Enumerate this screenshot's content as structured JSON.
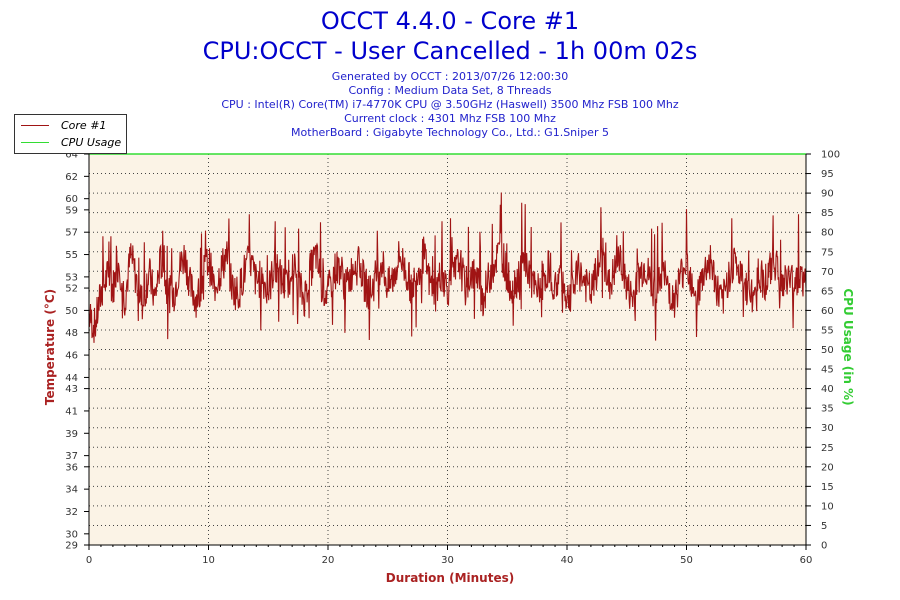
{
  "title": "OCCT 4.4.0 - Core #1",
  "subtitle": "CPU:OCCT - User Cancelled - 1h 00m 02s",
  "info": {
    "generated": "Generated by OCCT : 2013/07/26 12:00:30",
    "config": "Config : Medium Data Set, 8 Threads",
    "cpu": "CPU : Intel(R) Core(TM) i7-4770K CPU @ 3.50GHz (Haswell) 3500 Mhz FSB 100 Mhz",
    "clock": "Current clock : 4301 Mhz FSB 100 Mhz",
    "motherboard": "MotherBoard : Gigabyte Technology Co., Ltd.: G1.Sniper 5"
  },
  "colors": {
    "temperature": "#a01414",
    "cpu_usage": "#33dd33",
    "plot_bg": "#fbf3e6",
    "title": "#0000cc"
  },
  "chart_data": {
    "type": "line",
    "title": "OCCT 4.4.0 - Core #1",
    "xlabel": "Duration (Minutes)",
    "ylabel": "Temperature (°C)",
    "y2label": "CPU Usage (in %)",
    "xlim": [
      0,
      60
    ],
    "ylim": [
      29,
      64
    ],
    "y2lim": [
      0,
      100
    ],
    "x_ticks": [
      0,
      10,
      20,
      30,
      40,
      50,
      60
    ],
    "y_ticks": [
      29,
      30,
      32,
      34,
      36,
      37,
      39,
      41,
      43,
      44,
      46,
      48,
      50,
      52,
      53,
      55,
      57,
      59,
      60,
      62,
      64
    ],
    "y2_ticks": [
      0,
      5,
      10,
      15,
      20,
      25,
      30,
      35,
      40,
      45,
      50,
      55,
      60,
      65,
      70,
      75,
      80,
      85,
      90,
      95,
      100
    ],
    "legend": [
      "Core #1",
      "CPU Usage"
    ],
    "legend_position": "top-left",
    "series": [
      {
        "name": "Core #1",
        "axis": "left",
        "x": [
          0,
          0.5,
          1,
          1.5,
          2,
          2.5,
          3,
          3.5,
          4,
          4.5,
          5,
          5.5,
          6,
          6.5,
          7,
          7.5,
          8,
          8.5,
          9,
          9.5,
          10,
          10.5,
          11,
          11.5,
          12,
          12.5,
          13,
          13.5,
          14,
          14.5,
          15,
          15.5,
          16,
          16.5,
          17,
          17.5,
          18,
          18.5,
          19,
          19.5,
          20,
          20.5,
          21,
          21.5,
          22,
          22.5,
          23,
          23.5,
          24,
          24.5,
          25,
          25.5,
          26,
          26.5,
          27,
          27.5,
          28,
          28.5,
          29,
          29.5,
          30,
          30.5,
          31,
          31.5,
          32,
          32.5,
          33,
          33.5,
          34,
          34.5,
          35,
          35.5,
          36,
          36.5,
          37,
          37.5,
          38,
          38.5,
          39,
          39.5,
          40,
          40.5,
          41,
          41.5,
          42,
          42.5,
          43,
          43.5,
          44,
          44.5,
          45,
          45.5,
          46,
          46.5,
          47,
          47.5,
          48,
          48.5,
          49,
          49.5,
          50,
          50.5,
          51,
          51.5,
          52,
          52.5,
          53,
          53.5,
          54,
          54.5,
          55,
          55.5,
          56,
          56.5,
          57,
          57.5,
          58,
          58.5,
          59,
          59.5,
          60
        ],
        "y": [
          49.5,
          48.5,
          51.5,
          53,
          52,
          54.5,
          51,
          55,
          52.5,
          50.5,
          53.5,
          51,
          54.5,
          52,
          51,
          53.5,
          55,
          52,
          51,
          53,
          54.5,
          52,
          53.5,
          55,
          52,
          51.5,
          53.5,
          54.5,
          52.5,
          53,
          51.5,
          54,
          53,
          52,
          54.5,
          52.5,
          51,
          53.5,
          55,
          52,
          51.5,
          53.5,
          54,
          52,
          53.5,
          55.5,
          52.5,
          51.5,
          53,
          54.5,
          52,
          53,
          55,
          53.5,
          52,
          53.5,
          55,
          52.5,
          51.5,
          53.5,
          52,
          53,
          54.5,
          52,
          53.5,
          52.5,
          51,
          53,
          54.5,
          55.5,
          53,
          52,
          53.5,
          54.5,
          52.5,
          51.5,
          53,
          54,
          52,
          53.5,
          51,
          52,
          53.5,
          52.5,
          51.5,
          53.5,
          55,
          52,
          53.5,
          54.5,
          52,
          51,
          53,
          54,
          52.5,
          51.5,
          53.5,
          52,
          51,
          53,
          54.5,
          52.5,
          51.5,
          53.5,
          54.5,
          52,
          50.5,
          53,
          54.5,
          53,
          52,
          51,
          53.5,
          52.5,
          53.5,
          54.5,
          52,
          53,
          52.5,
          53.5,
          52
        ]
      },
      {
        "name": "CPU Usage",
        "axis": "right",
        "x": [
          0,
          60
        ],
        "y": [
          100,
          100
        ]
      }
    ]
  }
}
